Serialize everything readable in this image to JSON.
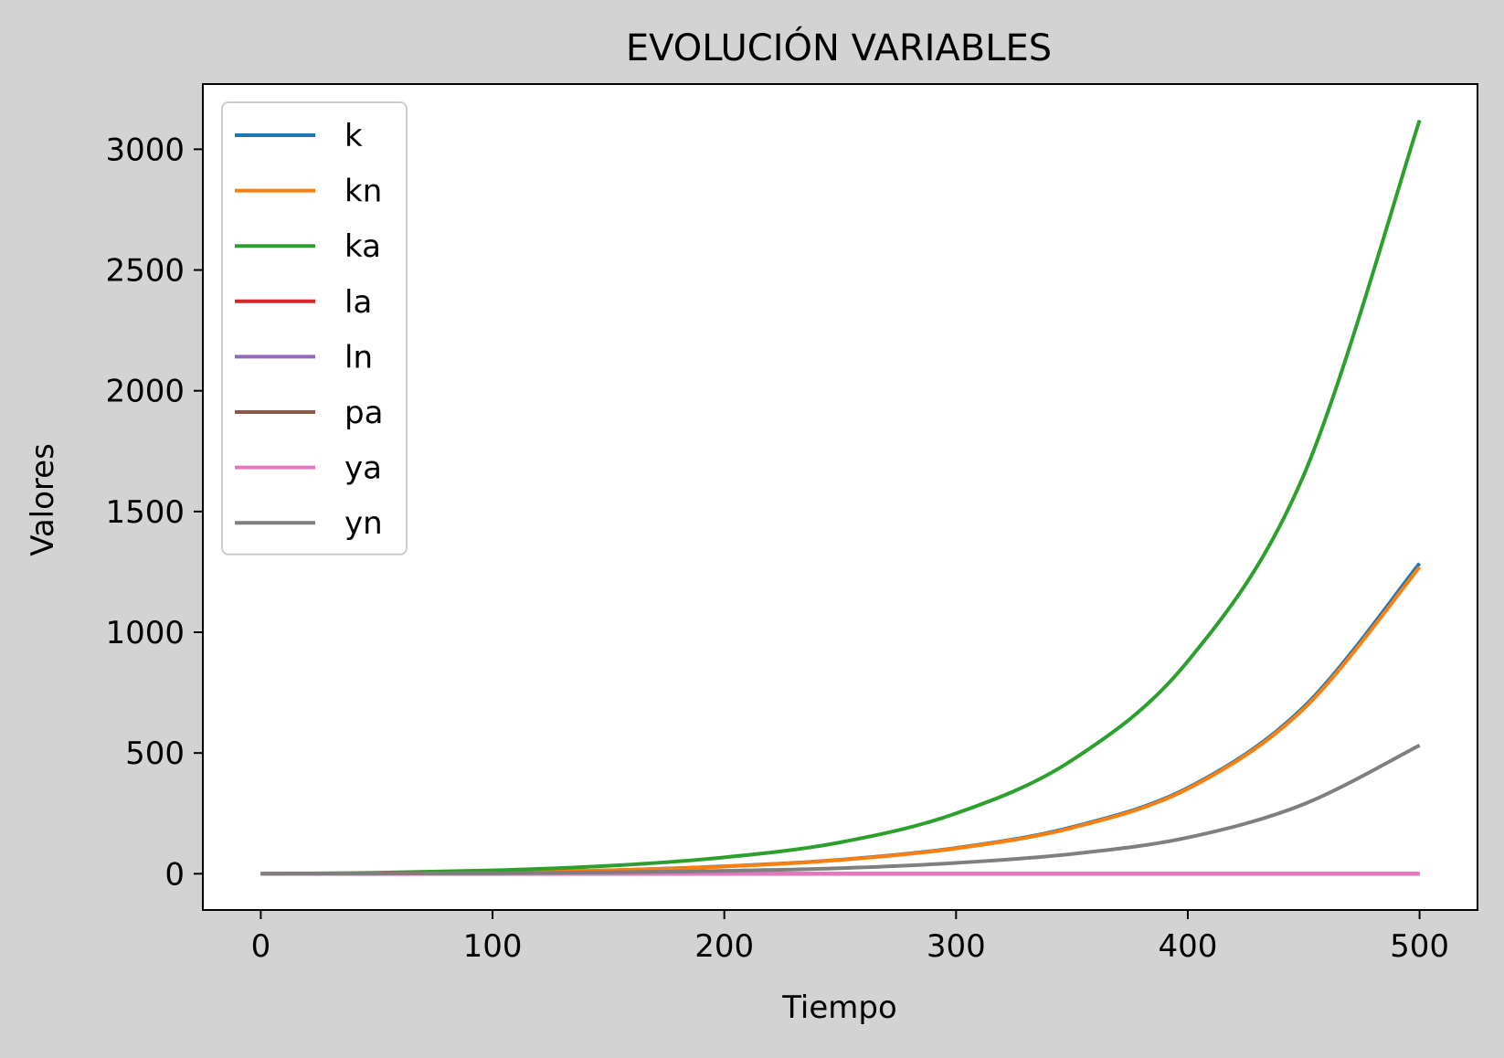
{
  "chart_data": {
    "type": "line",
    "title": "EVOLUCIÓN VARIABLES",
    "xlabel": "Tiempo",
    "ylabel": "Valores",
    "xlim": [
      -25,
      525
    ],
    "ylim": [
      -150,
      3270
    ],
    "x_ticks": [
      0,
      100,
      200,
      300,
      400,
      500
    ],
    "x_tick_labels": [
      "0",
      "100",
      "200",
      "300",
      "400",
      "500"
    ],
    "y_ticks": [
      0,
      500,
      1000,
      1500,
      2000,
      2500,
      3000
    ],
    "y_tick_labels": [
      "0",
      "500",
      "1000",
      "1500",
      "2000",
      "2500",
      "3000"
    ],
    "grid": false,
    "legend": "upper left",
    "x": [
      0,
      50,
      100,
      150,
      200,
      250,
      300,
      350,
      400,
      450,
      500
    ],
    "series": [
      {
        "name": "k",
        "color": "#1f77b4",
        "values": [
          0,
          1,
          5,
          14,
          31,
          58,
          107,
          193,
          356,
          690,
          1285
        ]
      },
      {
        "name": "kn",
        "color": "#ff7f0e",
        "values": [
          0,
          1,
          5,
          14,
          30,
          57,
          105,
          190,
          352,
          683,
          1270
        ]
      },
      {
        "name": "ka",
        "color": "#2ca02c",
        "values": [
          0,
          4,
          14,
          33,
          68,
          130,
          250,
          470,
          880,
          1650,
          3120
        ]
      },
      {
        "name": "la",
        "color": "#d62728",
        "values": [
          0,
          0,
          0,
          0,
          0,
          0,
          0,
          0,
          0,
          0,
          0
        ]
      },
      {
        "name": "ln",
        "color": "#9467bd",
        "values": [
          0,
          0,
          0,
          0,
          0,
          0,
          0,
          0,
          0,
          0,
          0
        ]
      },
      {
        "name": "pa",
        "color": "#8c564b",
        "values": [
          0,
          0,
          0,
          0,
          0,
          0,
          0,
          0,
          0,
          0,
          0
        ]
      },
      {
        "name": "ya",
        "color": "#e377c2",
        "values": [
          0,
          0,
          0,
          0,
          0,
          0,
          0,
          0,
          0,
          0,
          0
        ]
      },
      {
        "name": "yn",
        "color": "#7f7f7f",
        "values": [
          0,
          0.5,
          2,
          6,
          12,
          23,
          45,
          82,
          150,
          288,
          532
        ]
      }
    ]
  }
}
